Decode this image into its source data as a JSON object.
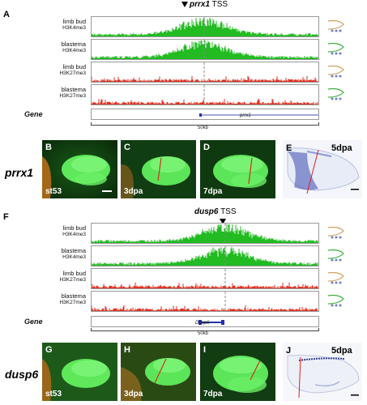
{
  "panelA": {
    "letter": "A",
    "tss_gene": "prrx1",
    "tss_suffix": "TSS",
    "tracks": [
      {
        "line1": "limb bud",
        "line2": "H3K4me3",
        "color": "#22bb22"
      },
      {
        "line1": "blastema",
        "line2": "H3K4me3",
        "color": "#22bb22"
      },
      {
        "line1": "limb bud",
        "line2": "H3K27me3",
        "color": "#e03020"
      },
      {
        "line1": "blastema",
        "line2": "H3K27me3",
        "color": "#e03020"
      }
    ],
    "gene_row_label": "Gene",
    "gene_name": "prrx1",
    "scale": "50kb"
  },
  "rowPrrx1": {
    "gene": "prrx1",
    "panels": [
      {
        "letter": "B",
        "stage": "st53"
      },
      {
        "letter": "C",
        "stage": "3dpa"
      },
      {
        "letter": "D",
        "stage": "7dpa"
      }
    ],
    "insitu": {
      "letter": "E",
      "stage": "5dpa"
    }
  },
  "panelF": {
    "letter": "F",
    "tss_gene": "dusp6",
    "tss_suffix": "TSS",
    "tracks": [
      {
        "line1": "limb bud",
        "line2": "H3K4me3",
        "color": "#22bb22"
      },
      {
        "line1": "blastema",
        "line2": "H3K4me3",
        "color": "#22bb22"
      },
      {
        "line1": "limb bud",
        "line2": "H3K27me3",
        "color": "#e03020"
      },
      {
        "line1": "blastema",
        "line2": "H3K27me3",
        "color": "#e03020"
      }
    ],
    "gene_row_label": "Gene",
    "gene_name": "Dusp6",
    "scale": "50kb"
  },
  "rowDusp6": {
    "gene": "dusp6",
    "panels": [
      {
        "letter": "G",
        "stage": "st53"
      },
      {
        "letter": "H",
        "stage": "3dpa"
      },
      {
        "letter": "I",
        "stage": "7dpa"
      }
    ],
    "insitu": {
      "letter": "J",
      "stage": "5dpa"
    }
  }
}
